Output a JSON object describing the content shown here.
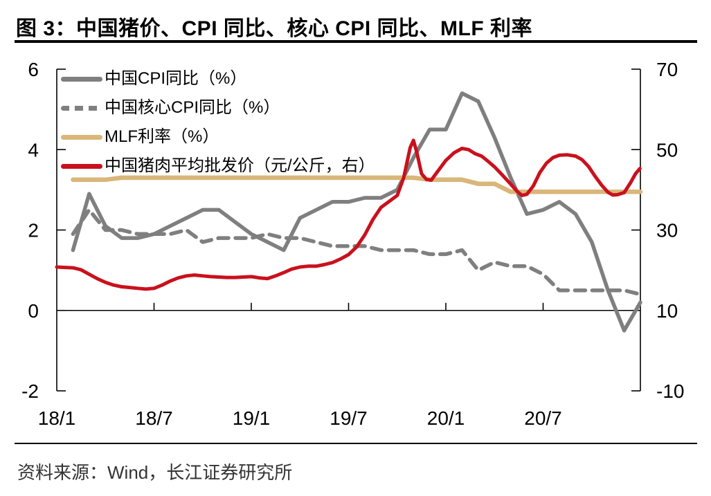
{
  "title": "图 3：中国猪价、CPI 同比、核心 CPI 同比、MLF 利率",
  "source": "资料来源：Wind，长江证券研究所",
  "colors": {
    "cpi_gray": "#7f7f7f",
    "mlf_tan": "#d9b679",
    "pork_red": "#c9111d",
    "axis_black": "#000000"
  },
  "chart_data": {
    "type": "line",
    "title": "图 3：中国猪价、CPI 同比、核心 CPI 同比、MLF 利率",
    "legend_position": "top-left",
    "grid": false,
    "x_axis": {
      "tick_labels": [
        "18/1",
        "18/7",
        "19/1",
        "19/7",
        "20/1",
        "20/7"
      ],
      "tick_month_offsets": [
        0,
        6,
        12,
        18,
        24,
        30
      ],
      "range_months": [
        "2018-01",
        "2020-12"
      ]
    },
    "left_axis": {
      "ticks": [
        "6",
        "4",
        "2",
        "0",
        "-2"
      ],
      "ylim": [
        -2,
        6
      ]
    },
    "right_axis": {
      "ticks": [
        "70",
        "50",
        "30",
        "10",
        "-10"
      ],
      "ylim": [
        -10,
        70
      ]
    },
    "months": [
      "2018-01",
      "2018-02",
      "2018-03",
      "2018-04",
      "2018-05",
      "2018-06",
      "2018-07",
      "2018-08",
      "2018-09",
      "2018-10",
      "2018-11",
      "2018-12",
      "2019-01",
      "2019-02",
      "2019-03",
      "2019-04",
      "2019-05",
      "2019-06",
      "2019-07",
      "2019-08",
      "2019-09",
      "2019-10",
      "2019-11",
      "2019-12",
      "2020-01",
      "2020-02",
      "2020-03",
      "2020-04",
      "2020-05",
      "2020-06",
      "2020-07",
      "2020-08",
      "2020-09",
      "2020-10",
      "2020-11",
      "2020-12"
    ],
    "series": [
      {
        "id": "line-cpi",
        "name": "中国CPI同比（%）",
        "axis": "left",
        "color": "#7f7f7f",
        "dash": "solid",
        "width": 5.5,
        "values": [
          1.5,
          2.9,
          2.1,
          1.8,
          1.8,
          1.9,
          2.1,
          2.3,
          2.5,
          2.5,
          2.2,
          1.9,
          1.7,
          1.5,
          2.3,
          2.5,
          2.7,
          2.7,
          2.8,
          2.8,
          3.0,
          3.8,
          4.5,
          4.5,
          5.4,
          5.2,
          4.3,
          3.3,
          2.4,
          2.5,
          2.7,
          2.4,
          1.7,
          0.5,
          -0.5,
          0.2
        ]
      },
      {
        "id": "line-core-cpi",
        "name": "中国核心CPI同比（%）",
        "axis": "left",
        "color": "#7f7f7f",
        "dash": "dashed",
        "width": 5.5,
        "values": [
          1.9,
          2.5,
          2.0,
          2.0,
          1.9,
          1.9,
          1.9,
          2.0,
          1.7,
          1.8,
          1.8,
          1.8,
          1.9,
          1.8,
          1.8,
          1.7,
          1.6,
          1.6,
          1.6,
          1.5,
          1.5,
          1.5,
          1.4,
          1.4,
          1.5,
          1.0,
          1.2,
          1.1,
          1.1,
          0.9,
          0.5,
          0.5,
          0.5,
          0.5,
          0.5,
          0.4
        ]
      },
      {
        "id": "line-mlf",
        "name": "MLF利率（%）",
        "axis": "left",
        "color": "#d9b679",
        "dash": "solid",
        "width": 6.5,
        "values": [
          3.25,
          3.25,
          3.25,
          3.3,
          3.3,
          3.3,
          3.3,
          3.3,
          3.3,
          3.3,
          3.3,
          3.3,
          3.3,
          3.3,
          3.3,
          3.3,
          3.3,
          3.3,
          3.3,
          3.3,
          3.3,
          3.3,
          3.25,
          3.25,
          3.25,
          3.15,
          3.15,
          2.95,
          2.95,
          2.95,
          2.95,
          2.95,
          2.95,
          2.95,
          2.95,
          2.95
        ]
      },
      {
        "id": "line-pork",
        "name": "中国猪肉平均批发价（元/公斤，右）",
        "axis": "right",
        "color": "#c9111d",
        "dash": "solid",
        "width": 5,
        "points": [
          [
            0,
            20.8
          ],
          [
            0.5,
            20.7
          ],
          [
            1,
            20.6
          ],
          [
            1.5,
            20.1
          ],
          [
            2,
            19.0
          ],
          [
            2.5,
            17.9
          ],
          [
            3,
            17.0
          ],
          [
            3.5,
            16.3
          ],
          [
            4,
            15.9
          ],
          [
            4.5,
            15.7
          ],
          [
            5,
            15.5
          ],
          [
            5.5,
            15.3
          ],
          [
            6,
            15.5
          ],
          [
            6.5,
            16.3
          ],
          [
            7,
            17.3
          ],
          [
            7.5,
            18.1
          ],
          [
            8,
            18.6
          ],
          [
            8.5,
            18.8
          ],
          [
            9,
            18.6
          ],
          [
            9.5,
            18.4
          ],
          [
            10,
            18.3
          ],
          [
            10.5,
            18.2
          ],
          [
            11,
            18.2
          ],
          [
            11.5,
            18.3
          ],
          [
            12,
            18.4
          ],
          [
            12.5,
            18.1
          ],
          [
            13,
            17.9
          ],
          [
            13.5,
            18.6
          ],
          [
            14,
            19.4
          ],
          [
            14.5,
            20.3
          ],
          [
            15,
            20.8
          ],
          [
            15.5,
            21.0
          ],
          [
            16,
            21.0
          ],
          [
            16.5,
            21.4
          ],
          [
            17,
            21.9
          ],
          [
            17.5,
            22.8
          ],
          [
            18,
            23.9
          ],
          [
            18.5,
            25.8
          ],
          [
            19,
            28.8
          ],
          [
            19.5,
            32.6
          ],
          [
            20,
            35.6
          ],
          [
            20.5,
            37.1
          ],
          [
            21,
            38.6
          ],
          [
            21.4,
            43.0
          ],
          [
            21.8,
            50.5
          ],
          [
            22,
            52.3
          ],
          [
            22.2,
            49.5
          ],
          [
            22.5,
            44.0
          ],
          [
            22.8,
            42.6
          ],
          [
            23.1,
            42.4
          ],
          [
            23.5,
            44.6
          ],
          [
            24,
            47.3
          ],
          [
            24.5,
            49.2
          ],
          [
            25,
            50.3
          ],
          [
            25.4,
            50.0
          ],
          [
            25.8,
            49.0
          ],
          [
            26.2,
            48.4
          ],
          [
            26.6,
            47.1
          ],
          [
            27,
            45.7
          ],
          [
            27.5,
            43.6
          ],
          [
            28,
            41.4
          ],
          [
            28.4,
            39.6
          ],
          [
            28.7,
            38.6
          ],
          [
            29,
            38.9
          ],
          [
            29.4,
            41.0
          ],
          [
            29.8,
            44.3
          ],
          [
            30.2,
            46.6
          ],
          [
            30.6,
            48.0
          ],
          [
            31,
            48.6
          ],
          [
            31.5,
            48.7
          ],
          [
            32,
            48.4
          ],
          [
            32.4,
            47.5
          ],
          [
            32.8,
            45.8
          ],
          [
            33.2,
            43.4
          ],
          [
            33.6,
            41.2
          ],
          [
            34,
            39.4
          ],
          [
            34.3,
            38.7
          ],
          [
            34.6,
            38.8
          ],
          [
            35,
            39.3
          ],
          [
            35.4,
            41.8
          ],
          [
            35.7,
            44.0
          ],
          [
            35.97,
            45.3
          ]
        ]
      }
    ]
  }
}
